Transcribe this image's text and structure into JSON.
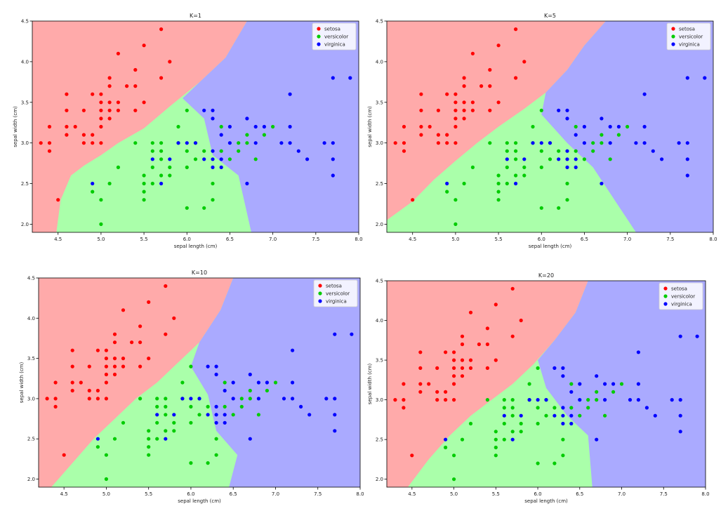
{
  "colors": {
    "setosa_region": "#ffaaaa",
    "versicolor_region": "#aaffaa",
    "virginica_region": "#aaaaff",
    "setosa_point": "#ff0000",
    "versicolor_point": "#00cc00",
    "virginica_point": "#0000ff"
  },
  "chart_data": [
    {
      "type": "scatter",
      "title": "K=1",
      "xlabel": "sepal length (cm)",
      "ylabel": "sepal width (cm)",
      "xlim": [
        4.2,
        8.0
      ],
      "ylim": [
        1.9,
        4.5
      ],
      "xticks": [
        "4.5",
        "5.0",
        "5.5",
        "6.0",
        "6.5",
        "7.0",
        "7.5",
        "8.0"
      ],
      "yticks": [
        "2.0",
        "2.5",
        "3.0",
        "3.5",
        "4.0",
        "4.5"
      ],
      "legend": {
        "placement": "top-right",
        "entries": [
          "setosa",
          "versicolor",
          "virginica"
        ]
      },
      "regions": {
        "setosa": [
          [
            4.2,
            1.9
          ],
          [
            4.48,
            1.9
          ],
          [
            4.53,
            2.3
          ],
          [
            4.65,
            2.6
          ],
          [
            4.8,
            2.72
          ],
          [
            5.0,
            2.85
          ],
          [
            5.2,
            3.0
          ],
          [
            5.5,
            3.18
          ],
          [
            5.8,
            3.45
          ],
          [
            6.15,
            3.75
          ],
          [
            6.45,
            4.05
          ],
          [
            6.7,
            4.5
          ],
          [
            4.2,
            4.5
          ]
        ],
        "virginica": [
          [
            6.7,
            4.5
          ],
          [
            6.45,
            4.05
          ],
          [
            6.15,
            3.75
          ],
          [
            5.95,
            3.55
          ],
          [
            6.2,
            3.3
          ],
          [
            6.3,
            2.85
          ],
          [
            6.6,
            2.6
          ],
          [
            6.75,
            1.9
          ],
          [
            8.0,
            1.9
          ],
          [
            8.0,
            4.5
          ]
        ]
      },
      "series": [
        {
          "name": "setosa",
          "points": [
            [
              4.3,
              3.0
            ],
            [
              4.4,
              2.9
            ],
            [
              4.4,
              3.0
            ],
            [
              4.4,
              3.2
            ],
            [
              4.5,
              2.3
            ],
            [
              4.6,
              3.1
            ],
            [
              4.6,
              3.2
            ],
            [
              4.6,
              3.4
            ],
            [
              4.6,
              3.6
            ],
            [
              4.7,
              3.2
            ],
            [
              4.8,
              3.0
            ],
            [
              4.8,
              3.1
            ],
            [
              4.8,
              3.4
            ],
            [
              4.9,
              3.0
            ],
            [
              4.9,
              3.1
            ],
            [
              4.9,
              3.6
            ],
            [
              5.0,
              3.0
            ],
            [
              5.0,
              3.2
            ],
            [
              5.0,
              3.3
            ],
            [
              5.0,
              3.4
            ],
            [
              5.0,
              3.5
            ],
            [
              5.0,
              3.6
            ],
            [
              5.1,
              3.3
            ],
            [
              5.1,
              3.4
            ],
            [
              5.1,
              3.5
            ],
            [
              5.1,
              3.7
            ],
            [
              5.1,
              3.8
            ],
            [
              5.2,
              3.4
            ],
            [
              5.2,
              3.5
            ],
            [
              5.2,
              4.1
            ],
            [
              5.3,
              3.7
            ],
            [
              5.4,
              3.4
            ],
            [
              5.4,
              3.7
            ],
            [
              5.4,
              3.9
            ],
            [
              5.5,
              3.5
            ],
            [
              5.5,
              4.2
            ],
            [
              5.7,
              3.8
            ],
            [
              5.7,
              4.4
            ],
            [
              5.8,
              4.0
            ]
          ]
        },
        {
          "name": "versicolor",
          "points": [
            [
              4.9,
              2.4
            ],
            [
              5.0,
              2.0
            ],
            [
              5.0,
              2.3
            ],
            [
              5.1,
              2.5
            ],
            [
              5.2,
              2.7
            ],
            [
              5.4,
              3.0
            ],
            [
              5.5,
              2.3
            ],
            [
              5.5,
              2.4
            ],
            [
              5.5,
              2.5
            ],
            [
              5.5,
              2.6
            ],
            [
              5.6,
              2.5
            ],
            [
              5.6,
              2.7
            ],
            [
              5.6,
              2.9
            ],
            [
              5.6,
              3.0
            ],
            [
              5.7,
              2.6
            ],
            [
              5.7,
              2.8
            ],
            [
              5.7,
              2.9
            ],
            [
              5.7,
              3.0
            ],
            [
              5.8,
              2.6
            ],
            [
              5.8,
              2.7
            ],
            [
              5.9,
              3.0
            ],
            [
              5.9,
              3.2
            ],
            [
              6.0,
              2.2
            ],
            [
              6.0,
              2.7
            ],
            [
              6.0,
              2.9
            ],
            [
              6.0,
              3.4
            ],
            [
              6.1,
              2.8
            ],
            [
              6.1,
              3.0
            ],
            [
              6.2,
              2.2
            ],
            [
              6.2,
              2.9
            ],
            [
              6.3,
              2.3
            ],
            [
              6.3,
              2.5
            ],
            [
              6.4,
              2.9
            ],
            [
              6.4,
              3.2
            ],
            [
              6.5,
              2.8
            ],
            [
              6.6,
              2.9
            ],
            [
              6.6,
              3.0
            ],
            [
              6.7,
              3.0
            ],
            [
              6.7,
              3.1
            ],
            [
              6.8,
              2.8
            ],
            [
              6.9,
              3.1
            ],
            [
              7.0,
              3.2
            ]
          ]
        },
        {
          "name": "virginica",
          "points": [
            [
              4.9,
              2.5
            ],
            [
              5.6,
              2.8
            ],
            [
              5.7,
              2.5
            ],
            [
              5.8,
              2.8
            ],
            [
              5.9,
              3.0
            ],
            [
              6.0,
              3.0
            ],
            [
              6.1,
              3.0
            ],
            [
              6.2,
              2.8
            ],
            [
              6.2,
              3.4
            ],
            [
              6.3,
              2.7
            ],
            [
              6.3,
              2.8
            ],
            [
              6.3,
              2.9
            ],
            [
              6.3,
              3.3
            ],
            [
              6.3,
              3.4
            ],
            [
              6.4,
              2.7
            ],
            [
              6.4,
              2.8
            ],
            [
              6.4,
              3.1
            ],
            [
              6.5,
              3.0
            ],
            [
              6.5,
              3.2
            ],
            [
              6.7,
              2.5
            ],
            [
              6.7,
              3.3
            ],
            [
              6.8,
              3.0
            ],
            [
              6.8,
              3.2
            ],
            [
              6.9,
              3.2
            ],
            [
              7.1,
              3.0
            ],
            [
              7.2,
              3.0
            ],
            [
              7.2,
              3.2
            ],
            [
              7.2,
              3.6
            ],
            [
              7.3,
              2.9
            ],
            [
              7.4,
              2.8
            ],
            [
              7.6,
              3.0
            ],
            [
              7.7,
              2.6
            ],
            [
              7.7,
              2.8
            ],
            [
              7.7,
              3.0
            ],
            [
              7.7,
              3.8
            ],
            [
              7.9,
              3.8
            ]
          ]
        }
      ]
    },
    {
      "type": "scatter",
      "title": "K=5",
      "xlabel": "sepal length (cm)",
      "ylabel": "sepal width (cm)",
      "xlim": [
        4.2,
        8.0
      ],
      "ylim": [
        1.9,
        4.5
      ],
      "xticks": [
        "4.5",
        "5.0",
        "5.5",
        "6.0",
        "6.5",
        "7.0",
        "7.5",
        "8.0"
      ],
      "yticks": [
        "2.0",
        "2.5",
        "3.0",
        "3.5",
        "4.0",
        "4.5"
      ],
      "legend": {
        "placement": "top-right",
        "entries": [
          "setosa",
          "versicolor",
          "virginica"
        ]
      },
      "regions": {
        "setosa": [
          [
            4.2,
            1.9
          ],
          [
            4.2,
            2.05
          ],
          [
            4.5,
            2.28
          ],
          [
            4.75,
            2.55
          ],
          [
            5.0,
            2.78
          ],
          [
            5.25,
            3.0
          ],
          [
            5.5,
            3.2
          ],
          [
            5.8,
            3.42
          ],
          [
            6.05,
            3.62
          ],
          [
            6.3,
            3.9
          ],
          [
            6.5,
            4.2
          ],
          [
            6.75,
            4.5
          ],
          [
            4.2,
            4.5
          ]
        ],
        "virginica": [
          [
            6.75,
            4.5
          ],
          [
            6.5,
            4.2
          ],
          [
            6.3,
            3.9
          ],
          [
            6.05,
            3.62
          ],
          [
            6.0,
            3.35
          ],
          [
            6.3,
            3.0
          ],
          [
            6.6,
            2.7
          ],
          [
            7.1,
            1.9
          ],
          [
            8.0,
            1.9
          ],
          [
            8.0,
            4.5
          ]
        ]
      },
      "series": "same as K=1"
    },
    {
      "type": "scatter",
      "title": "K=10",
      "xlabel": "sepal length (cm)",
      "ylabel": "sepal width (cm)",
      "xlim": [
        4.2,
        8.0
      ],
      "ylim": [
        1.9,
        4.5
      ],
      "xticks": [
        "4.5",
        "5.0",
        "5.5",
        "6.0",
        "6.5",
        "7.0",
        "7.5",
        "8.0"
      ],
      "yticks": [
        "2.0",
        "2.5",
        "3.0",
        "3.5",
        "4.0",
        "4.5"
      ],
      "legend": {
        "placement": "top-right",
        "entries": [
          "setosa",
          "versicolor",
          "virginica"
        ]
      },
      "regions": {
        "setosa": [
          [
            4.2,
            1.9
          ],
          [
            4.35,
            1.9
          ],
          [
            4.6,
            2.2
          ],
          [
            4.85,
            2.5
          ],
          [
            5.1,
            2.75
          ],
          [
            5.35,
            3.0
          ],
          [
            5.6,
            3.2
          ],
          [
            5.85,
            3.45
          ],
          [
            6.1,
            3.7
          ],
          [
            6.35,
            4.1
          ],
          [
            6.5,
            4.5
          ],
          [
            4.2,
            4.5
          ]
        ],
        "virginica": [
          [
            6.5,
            4.5
          ],
          [
            6.35,
            4.1
          ],
          [
            6.1,
            3.7
          ],
          [
            6.0,
            3.4
          ],
          [
            6.2,
            3.05
          ],
          [
            6.3,
            2.6
          ],
          [
            6.55,
            2.3
          ],
          [
            6.45,
            1.9
          ],
          [
            8.0,
            1.9
          ],
          [
            8.0,
            4.5
          ]
        ]
      },
      "series": "same as K=1"
    },
    {
      "type": "scatter",
      "title": "K=20",
      "xlabel": "sepal length (cm)",
      "ylabel": "sepal width (cm)",
      "xlim": [
        4.2,
        8.0
      ],
      "ylim": [
        1.9,
        4.5
      ],
      "xticks": [
        "4.5",
        "5.0",
        "5.5",
        "6.0",
        "6.5",
        "7.0",
        "7.5",
        "8.0"
      ],
      "yticks": [
        "2.0",
        "2.5",
        "3.0",
        "3.5",
        "4.0",
        "4.5"
      ],
      "legend": {
        "placement": "top-right",
        "entries": [
          "setosa",
          "versicolor",
          "virginica"
        ]
      },
      "regions": {
        "setosa": [
          [
            4.2,
            1.9
          ],
          [
            4.45,
            1.9
          ],
          [
            4.7,
            2.25
          ],
          [
            4.95,
            2.55
          ],
          [
            5.2,
            2.8
          ],
          [
            5.45,
            3.0
          ],
          [
            5.7,
            3.2
          ],
          [
            5.95,
            3.45
          ],
          [
            6.2,
            3.75
          ],
          [
            6.45,
            4.1
          ],
          [
            6.6,
            4.5
          ],
          [
            4.2,
            4.5
          ]
        ],
        "virginica": [
          [
            6.6,
            4.5
          ],
          [
            6.45,
            4.1
          ],
          [
            6.2,
            3.75
          ],
          [
            6.0,
            3.5
          ],
          [
            6.1,
            3.15
          ],
          [
            6.35,
            2.8
          ],
          [
            6.6,
            2.55
          ],
          [
            6.65,
            1.9
          ],
          [
            8.0,
            1.9
          ],
          [
            8.0,
            4.5
          ]
        ]
      },
      "series": "same as K=1"
    }
  ]
}
